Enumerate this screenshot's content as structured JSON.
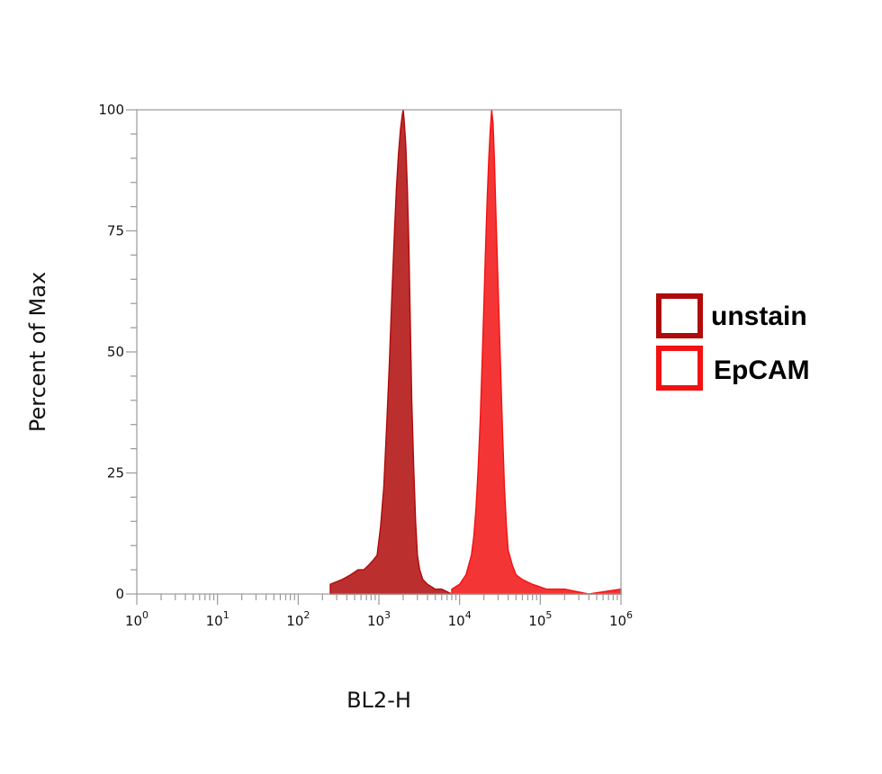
{
  "chart_data": {
    "type": "area",
    "xlabel": "BL2-H",
    "ylabel": "Percent of Max",
    "x_scale": "log",
    "xlim": [
      1,
      1000000
    ],
    "ylim": [
      0,
      100
    ],
    "x_ticks": [
      {
        "value": 1,
        "base": "10",
        "exp": "0"
      },
      {
        "value": 10,
        "base": "10",
        "exp": "1"
      },
      {
        "value": 100,
        "base": "10",
        "exp": "2"
      },
      {
        "value": 1000,
        "base": "10",
        "exp": "3"
      },
      {
        "value": 10000,
        "base": "10",
        "exp": "4"
      },
      {
        "value": 100000,
        "base": "10",
        "exp": "5"
      },
      {
        "value": 1000000,
        "base": "10",
        "exp": "6"
      }
    ],
    "y_ticks": [
      0,
      25,
      50,
      75,
      100
    ],
    "grid": false,
    "legend_position": "right",
    "series": [
      {
        "name": "unstain",
        "color": "#b00a0a",
        "x": [
          250,
          350,
          450,
          550,
          650,
          750,
          850,
          950,
          1050,
          1150,
          1250,
          1350,
          1450,
          1550,
          1650,
          1750,
          1850,
          1950,
          2000,
          2050,
          2150,
          2250,
          2350,
          2450,
          2550,
          2700,
          2850,
          3000,
          3200,
          3500,
          4000,
          5000,
          6000,
          8000
        ],
        "y": [
          2,
          3,
          4,
          5,
          5,
          6,
          7,
          8,
          14,
          22,
          35,
          48,
          62,
          74,
          84,
          91,
          96,
          99,
          100,
          98,
          93,
          84,
          72,
          56,
          40,
          26,
          15,
          8,
          5,
          3,
          2,
          1,
          1,
          0
        ]
      },
      {
        "name": "EpCAM",
        "color": "#f21212",
        "x": [
          8000,
          10000,
          12000,
          14000,
          15000,
          16000,
          17000,
          18000,
          19000,
          20000,
          21000,
          22000,
          23000,
          24000,
          25000,
          26000,
          27000,
          28000,
          30000,
          32000,
          34000,
          36000,
          38000,
          40000,
          45000,
          50000,
          60000,
          80000,
          120000,
          200000,
          400000,
          1000000
        ],
        "y": [
          1,
          2,
          4,
          8,
          12,
          18,
          26,
          36,
          48,
          60,
          72,
          82,
          90,
          96,
          100,
          97,
          90,
          80,
          64,
          48,
          34,
          22,
          14,
          9,
          6,
          4,
          3,
          2,
          1,
          1,
          0,
          1
        ]
      }
    ]
  }
}
